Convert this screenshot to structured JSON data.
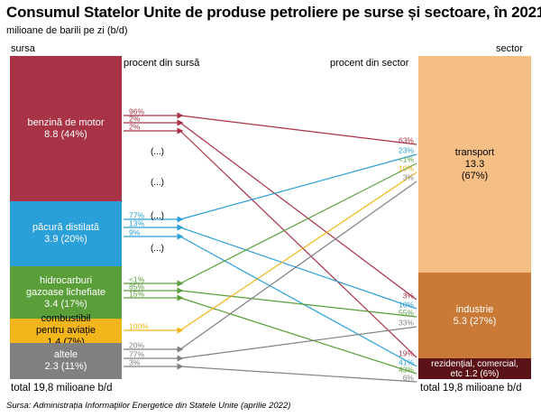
{
  "title": "Consumul Statelor Unite de produse petroliere pe surse și sectoare, în 2021",
  "subtitle": "milioane de barili pe zi (b/d)",
  "headers": {
    "sursa": "sursa",
    "sector": "sector",
    "pct_source": "procent din sursă",
    "pct_sector": "procent din sector"
  },
  "colors": {
    "benzina": "#a83246",
    "pacura": "#2a9fd8",
    "hidrocarburi": "#5a9e3a",
    "combustibil": "#f2b51c",
    "altele": "#808080",
    "transport": "#f4be85",
    "industrie": "#c87a36",
    "rezidential": "#5a1216"
  },
  "sources": [
    {
      "id": "benzina",
      "name": "benzină de motor",
      "value": "8.8 (44%)"
    },
    {
      "id": "pacura",
      "name": "păcură distilată",
      "value": "3.9 (20%)"
    },
    {
      "id": "hidrocarburi",
      "name": "hidrocarburi gazoase lichefiate",
      "value": "3.4 (17%)"
    },
    {
      "id": "combustibil",
      "name": "combustibil pentru aviație",
      "value": "1.4 (7%)"
    },
    {
      "id": "altele",
      "name": "altele",
      "value": "2.3 (11%)"
    }
  ],
  "sectors": [
    {
      "id": "transport",
      "name": "transport",
      "value": "13.3",
      "pct": "(67%)"
    },
    {
      "id": "industrie",
      "name": "industrie",
      "value": "5.3  (27%)"
    },
    {
      "id": "rezidential",
      "name": "rezidențial, comercial, etc",
      "value": "1.2 (6%)"
    }
  ],
  "flows": [
    {
      "from": "benzina",
      "to": "transport",
      "pct_source": "96%",
      "pct_sector": "63%"
    },
    {
      "from": "benzina",
      "to": "industrie",
      "pct_source": "2%",
      "pct_sector": "3%"
    },
    {
      "from": "benzina",
      "to": "rezidential",
      "pct_source": "2%",
      "pct_sector": "19%"
    },
    {
      "from": "pacura",
      "to": "transport",
      "pct_source": "77%",
      "pct_sector": "23%"
    },
    {
      "from": "pacura",
      "to": "industrie",
      "pct_source": "13%",
      "pct_sector": "10%"
    },
    {
      "from": "pacura",
      "to": "rezidential",
      "pct_source": "9%",
      "pct_sector": "41%"
    },
    {
      "from": "hidrocarburi",
      "to": "transport",
      "pct_source": "<1%",
      "pct_sector": "<1%"
    },
    {
      "from": "hidrocarburi",
      "to": "industrie",
      "pct_source": "85%",
      "pct_sector": "55%"
    },
    {
      "from": "hidrocarburi",
      "to": "rezidential",
      "pct_source": "15%",
      "pct_sector": "43%"
    },
    {
      "from": "combustibil",
      "to": "transport",
      "pct_source": "100%",
      "pct_sector": "10%"
    },
    {
      "from": "altele",
      "to": "transport",
      "pct_source": "20%",
      "pct_sector": "3%"
    },
    {
      "from": "altele",
      "to": "industrie",
      "pct_source": "77%",
      "pct_sector": "33%"
    },
    {
      "from": "altele",
      "to": "rezidential",
      "pct_source": "3%",
      "pct_sector": "6%"
    }
  ],
  "ellipsis": "(...)",
  "total_left": "total 19,8 milioane b/d",
  "total_right": "total 19,8 milioane b/d",
  "source_note": "Sursa: Administrația Informaţiilor Energetice din Statele Unite (aprilie 2022)"
}
